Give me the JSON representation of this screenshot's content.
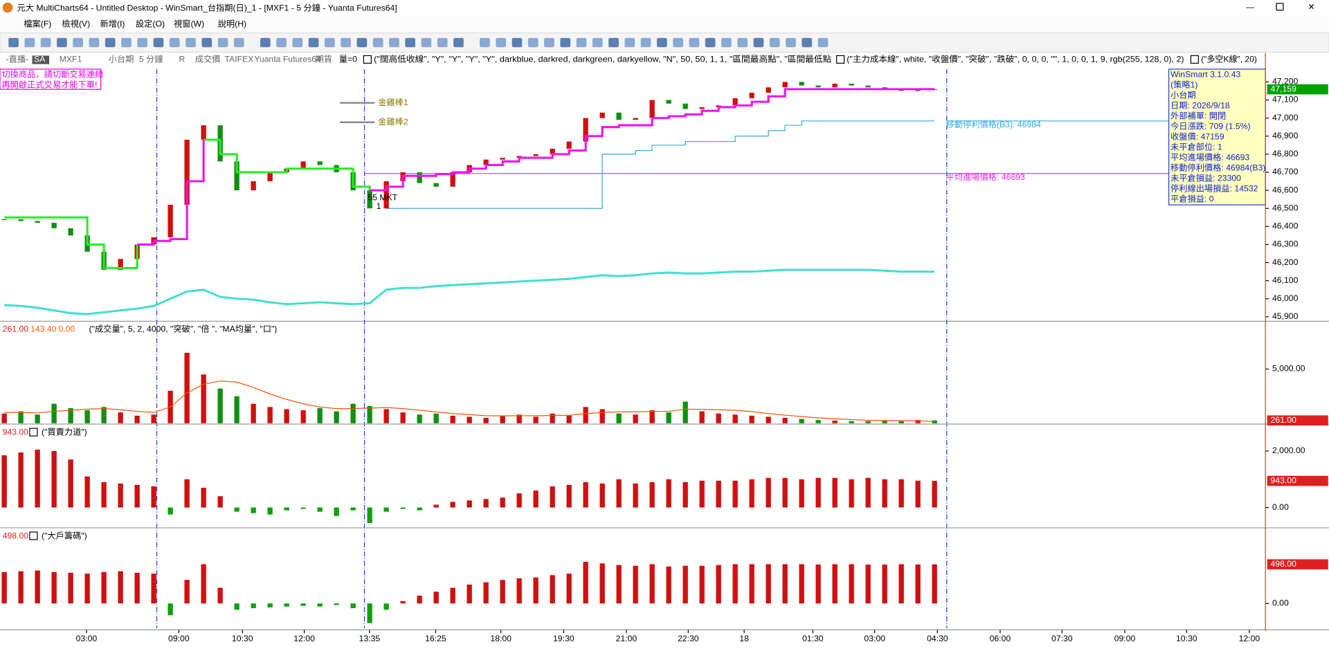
{
  "window": {
    "title": "元大 MultiCharts64 - Untitled Desktop - WinSmart_台指期(日)_1 - [MXF1 - 5 分鐘 - Yuanta Futures64]",
    "menus": [
      "檔案(F)",
      "檢視(V)",
      "新增(I)",
      "設定(O)",
      "視窗(W)",
      "說明(H)"
    ]
  },
  "chart_header": {
    "items": [
      "-直播-",
      "SA",
      "MXF1",
      "小台期",
      "5 分鐘",
      "R",
      "成交價",
      "TAIFEX",
      "Yuanta Futures64",
      "期貨",
      "量=0"
    ],
    "studies": [
      "(\"闊高低收線\", \"Y\", \"Y\", \"Y\", \"Y\", darkblue, darkred, darkgreen, darkyellow, \"N\", 50, 50, 1, 1, \"區間最高點\", \"區間最低點",
      "(\"主力成本線\", white, \"收盤價\", \"突破\", \"跌破\", 0, 0, 0, \"\", 1, 0, 0, 1, 9, rgb(255, 128, 0), 2)",
      "(\"多空K線\", 20)"
    ]
  },
  "warning": [
    "切換商品，請切斷交易連線",
    "再開啟正式交易才能下單!"
  ],
  "price_pane": {
    "ylim": [
      45880,
      47350
    ],
    "yticks": [
      {
        "value": 47200,
        "label": "47,200"
      },
      {
        "value": 47100,
        "label": "47,100"
      },
      {
        "value": 47000,
        "label": "47,000"
      },
      {
        "value": 46900,
        "label": "46,900"
      },
      {
        "value": 46800,
        "label": "46,800"
      },
      {
        "value": 46700,
        "label": "46,700"
      },
      {
        "value": 46600,
        "label": "46,600"
      },
      {
        "value": 46500,
        "label": "46,500"
      },
      {
        "value": 46400,
        "label": "46,400"
      },
      {
        "value": 46300,
        "label": "46,300"
      },
      {
        "value": 46200,
        "label": "46,200"
      },
      {
        "value": 46100,
        "label": "46,100"
      },
      {
        "value": 46000,
        "label": "46,000"
      },
      {
        "value": 45900,
        "label": "45,900"
      }
    ],
    "last_price": {
      "value": 47159,
      "label": "47,159"
    },
    "closes": [
      46440,
      46430,
      46420,
      46390,
      46350,
      46260,
      46160,
      46220,
      46300,
      46340,
      46520,
      46880,
      46960,
      46760,
      46600,
      46650,
      46700,
      46720,
      46760,
      46740,
      46700,
      46600,
      46500,
      46650,
      46700,
      46640,
      46620,
      46700,
      46740,
      46770,
      46780,
      46790,
      46800,
      46830,
      46870,
      47000,
      47030,
      46990,
      47000,
      47100,
      47080,
      47050,
      47060,
      47070,
      47110,
      47140,
      47170,
      47200,
      47180,
      47170,
      47190,
      47180,
      47170,
      47160,
      47150,
      47160,
      47159
    ],
    "up_color": "#d01010",
    "down_color": "#109010",
    "trend_down": {
      "color": "#22ee22",
      "values": [
        46450,
        46450,
        46450,
        46450,
        46450,
        46300,
        46170,
        46170,
        46300,
        null,
        null,
        null,
        46880,
        46800,
        46700,
        46700,
        46700,
        46720,
        46720,
        46720,
        46720,
        46620,
        46600,
        null,
        null,
        null,
        null,
        null,
        null,
        null,
        null,
        null,
        null,
        null,
        null,
        null,
        null,
        null,
        null,
        null,
        null,
        null,
        null,
        null,
        null,
        null,
        null,
        null,
        null,
        null,
        null,
        null,
        null,
        null,
        null,
        null,
        null
      ]
    },
    "trend_up": {
      "color": "#ee11ee",
      "values": [
        null,
        null,
        null,
        null,
        null,
        null,
        null,
        null,
        46300,
        46320,
        46330,
        46650,
        46880,
        null,
        null,
        null,
        null,
        null,
        null,
        null,
        null,
        null,
        46600,
        46620,
        46680,
        46680,
        46690,
        46700,
        46720,
        46740,
        46760,
        46780,
        46780,
        46800,
        46820,
        46900,
        46950,
        46960,
        46960,
        47000,
        47010,
        47020,
        47040,
        47060,
        47070,
        47090,
        47120,
        47160,
        47160,
        47160,
        47160,
        47160,
        47160,
        47160,
        47160,
        47160,
        47160
      ]
    },
    "cost_line": {
      "color": "#40e0d0",
      "values": [
        45965,
        45960,
        45950,
        45935,
        45920,
        45915,
        45925,
        45935,
        45945,
        45960,
        46000,
        46040,
        46050,
        46010,
        46000,
        45995,
        45980,
        45970,
        45975,
        45980,
        45975,
        45970,
        45975,
        46050,
        46060,
        46060,
        46070,
        46075,
        46080,
        46085,
        46090,
        46095,
        46100,
        46105,
        46110,
        46120,
        46130,
        46125,
        46130,
        46140,
        46145,
        46140,
        46140,
        46145,
        46150,
        46150,
        46155,
        46160,
        46160,
        46160,
        46160,
        46160,
        46160,
        46155,
        46150,
        46150,
        46150
      ]
    },
    "stop_line": {
      "color": "#33aadd",
      "values": [
        null,
        null,
        null,
        null,
        null,
        null,
        null,
        null,
        null,
        null,
        null,
        null,
        null,
        null,
        null,
        null,
        null,
        null,
        null,
        null,
        null,
        null,
        null,
        46500,
        46500,
        46500,
        46500,
        46500,
        46500,
        46500,
        46500,
        46500,
        46500,
        46500,
        46500,
        46500,
        46800,
        46800,
        46820,
        46850,
        46850,
        46870,
        46870,
        46870,
        46900,
        46900,
        46930,
        46960,
        46984,
        46984,
        46984,
        46984,
        46984,
        46984,
        46984,
        46984,
        46984
      ]
    },
    "stop_level": 46984,
    "entry_level": 46693,
    "stop_label": "移動停利價格(B3): 46984",
    "entry_label": "平均進場價格: 46693",
    "gold_bars": [
      "金雞棒1",
      "金雞棒2"
    ],
    "order_label": "55 MKT",
    "order_qty": "1",
    "info_box": [
      "WinSmart 3.1.0.43",
      "(策略1)",
      "小台期",
      "日期: 2026/9/18",
      "外部補單: 開閉",
      "今日漲跌: 709 (1.5%)",
      "收盤價: 47159",
      "未平倉部位: 1",
      "平均進場價格: 46693",
      "移動停利價格: 46984(B3)",
      "未平倉損益: 23300",
      "停利線出場損益: 14532",
      "平倉損益: 0"
    ]
  },
  "volume_pane": {
    "header": [
      "261.00",
      "143.40",
      "0.00"
    ],
    "study": "(\"成交量\", 5, 2, 4000, \"突破\", \"倍 \", \"MA均量\", \"口\")",
    "ylim": [
      0,
      9100
    ],
    "yticks": [
      {
        "value": 5000,
        "label": "5,000.00"
      }
    ],
    "last": {
      "value": 261,
      "label": "261.00"
    },
    "values": [
      900,
      1100,
      800,
      1800,
      1400,
      1200,
      1500,
      1000,
      700,
      800,
      3000,
      6500,
      4500,
      3200,
      2500,
      1800,
      1500,
      1300,
      1200,
      1400,
      1100,
      1800,
      1600,
      1300,
      1000,
      800,
      900,
      700,
      600,
      500,
      700,
      800,
      600,
      900,
      700,
      1500,
      1300,
      900,
      800,
      1200,
      1000,
      2000,
      1100,
      900,
      800,
      700,
      600,
      500,
      400,
      300,
      250,
      200,
      200,
      250,
      200,
      300,
      261
    ],
    "ma": {
      "color": "#ff5000",
      "values": [
        1000,
        1000,
        950,
        1100,
        1200,
        1300,
        1350,
        1250,
        1100,
        1000,
        1500,
        2800,
        3600,
        3900,
        3800,
        3300,
        2700,
        2200,
        1800,
        1500,
        1350,
        1350,
        1400,
        1450,
        1350,
        1200,
        1050,
        900,
        800,
        700,
        680,
        700,
        690,
        720,
        740,
        880,
        1000,
        1050,
        1050,
        1100,
        1100,
        1300,
        1280,
        1250,
        1200,
        1080,
        900,
        750,
        620,
        500,
        410,
        340,
        280,
        250,
        230,
        240,
        143.4
      ]
    }
  },
  "power_pane": {
    "header": "943.00",
    "study": "(\"買賣力道\")",
    "ylim": [
      -690,
      2835
    ],
    "yticks": [
      {
        "value": 2000,
        "label": "2,000.00"
      },
      {
        "value": 0,
        "label": "0.00"
      }
    ],
    "last": {
      "value": 943,
      "label": "943.00"
    },
    "values": [
      1850,
      1950,
      2050,
      2000,
      1700,
      1100,
      900,
      850,
      800,
      750,
      -250,
      1000,
      700,
      400,
      -150,
      -200,
      -250,
      -100,
      -50,
      -150,
      -300,
      -100,
      -550,
      -150,
      -50,
      -100,
      100,
      200,
      250,
      300,
      350,
      500,
      600,
      750,
      800,
      900,
      850,
      1000,
      850,
      900,
      1000,
      900,
      950,
      950,
      950,
      1000,
      1050,
      1050,
      1000,
      1050,
      1050,
      1000,
      1050,
      1000,
      1000,
      950,
      943
    ]
  },
  "chips_pane": {
    "header": "498.00",
    "study": "(\"大戶籌碼\")",
    "ylim": [
      -325,
      920
    ],
    "yticks": [
      {
        "value": 0,
        "label": "0.00"
      }
    ],
    "last": {
      "value": 498,
      "label": "498.00"
    },
    "values": [
      400,
      410,
      420,
      400,
      390,
      380,
      400,
      410,
      390,
      380,
      -150,
      300,
      500,
      200,
      -80,
      -60,
      -50,
      -40,
      -30,
      -40,
      -20,
      -60,
      -250,
      -80,
      30,
      100,
      150,
      200,
      240,
      270,
      300,
      320,
      330,
      360,
      380,
      530,
      510,
      490,
      480,
      500,
      470,
      480,
      480,
      490,
      500,
      500,
      500,
      500,
      500,
      495,
      500,
      500,
      495,
      495,
      500,
      495,
      498
    ]
  },
  "time_axis": [
    "03:00",
    "09:00",
    "10:30",
    "12:00",
    "13:35",
    "16:25",
    "18:00",
    "19:30",
    "21:00",
    "22:30",
    "18",
    "01:30",
    "03:00",
    "04:30",
    "06:00",
    "07:30",
    "09:00",
    "10:30",
    "12:00"
  ]
}
